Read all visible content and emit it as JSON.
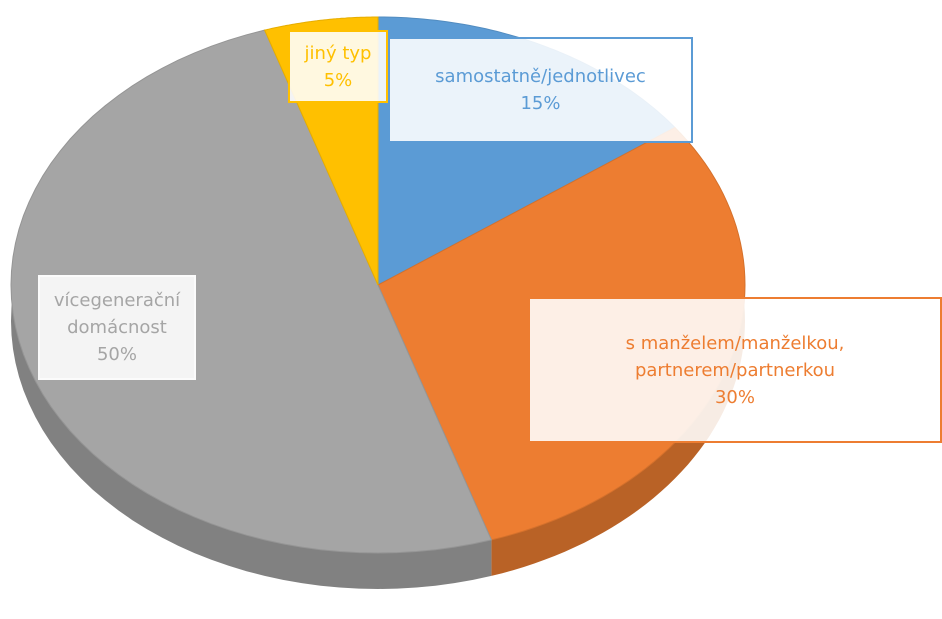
{
  "chart_data": {
    "type": "pie",
    "categories": [
      "samostatně/jednotlivec",
      "s manželem/manželkou, partnerem/partnerkou",
      "vícegenerační domácnost",
      "jiný typ"
    ],
    "values": [
      15,
      30,
      50,
      5
    ],
    "value_labels": [
      "15%",
      "30%",
      "50%",
      "5%"
    ],
    "colors": [
      "#5b9bd5",
      "#ed7d31",
      "#a5a5a5",
      "#ffc000"
    ]
  }
}
